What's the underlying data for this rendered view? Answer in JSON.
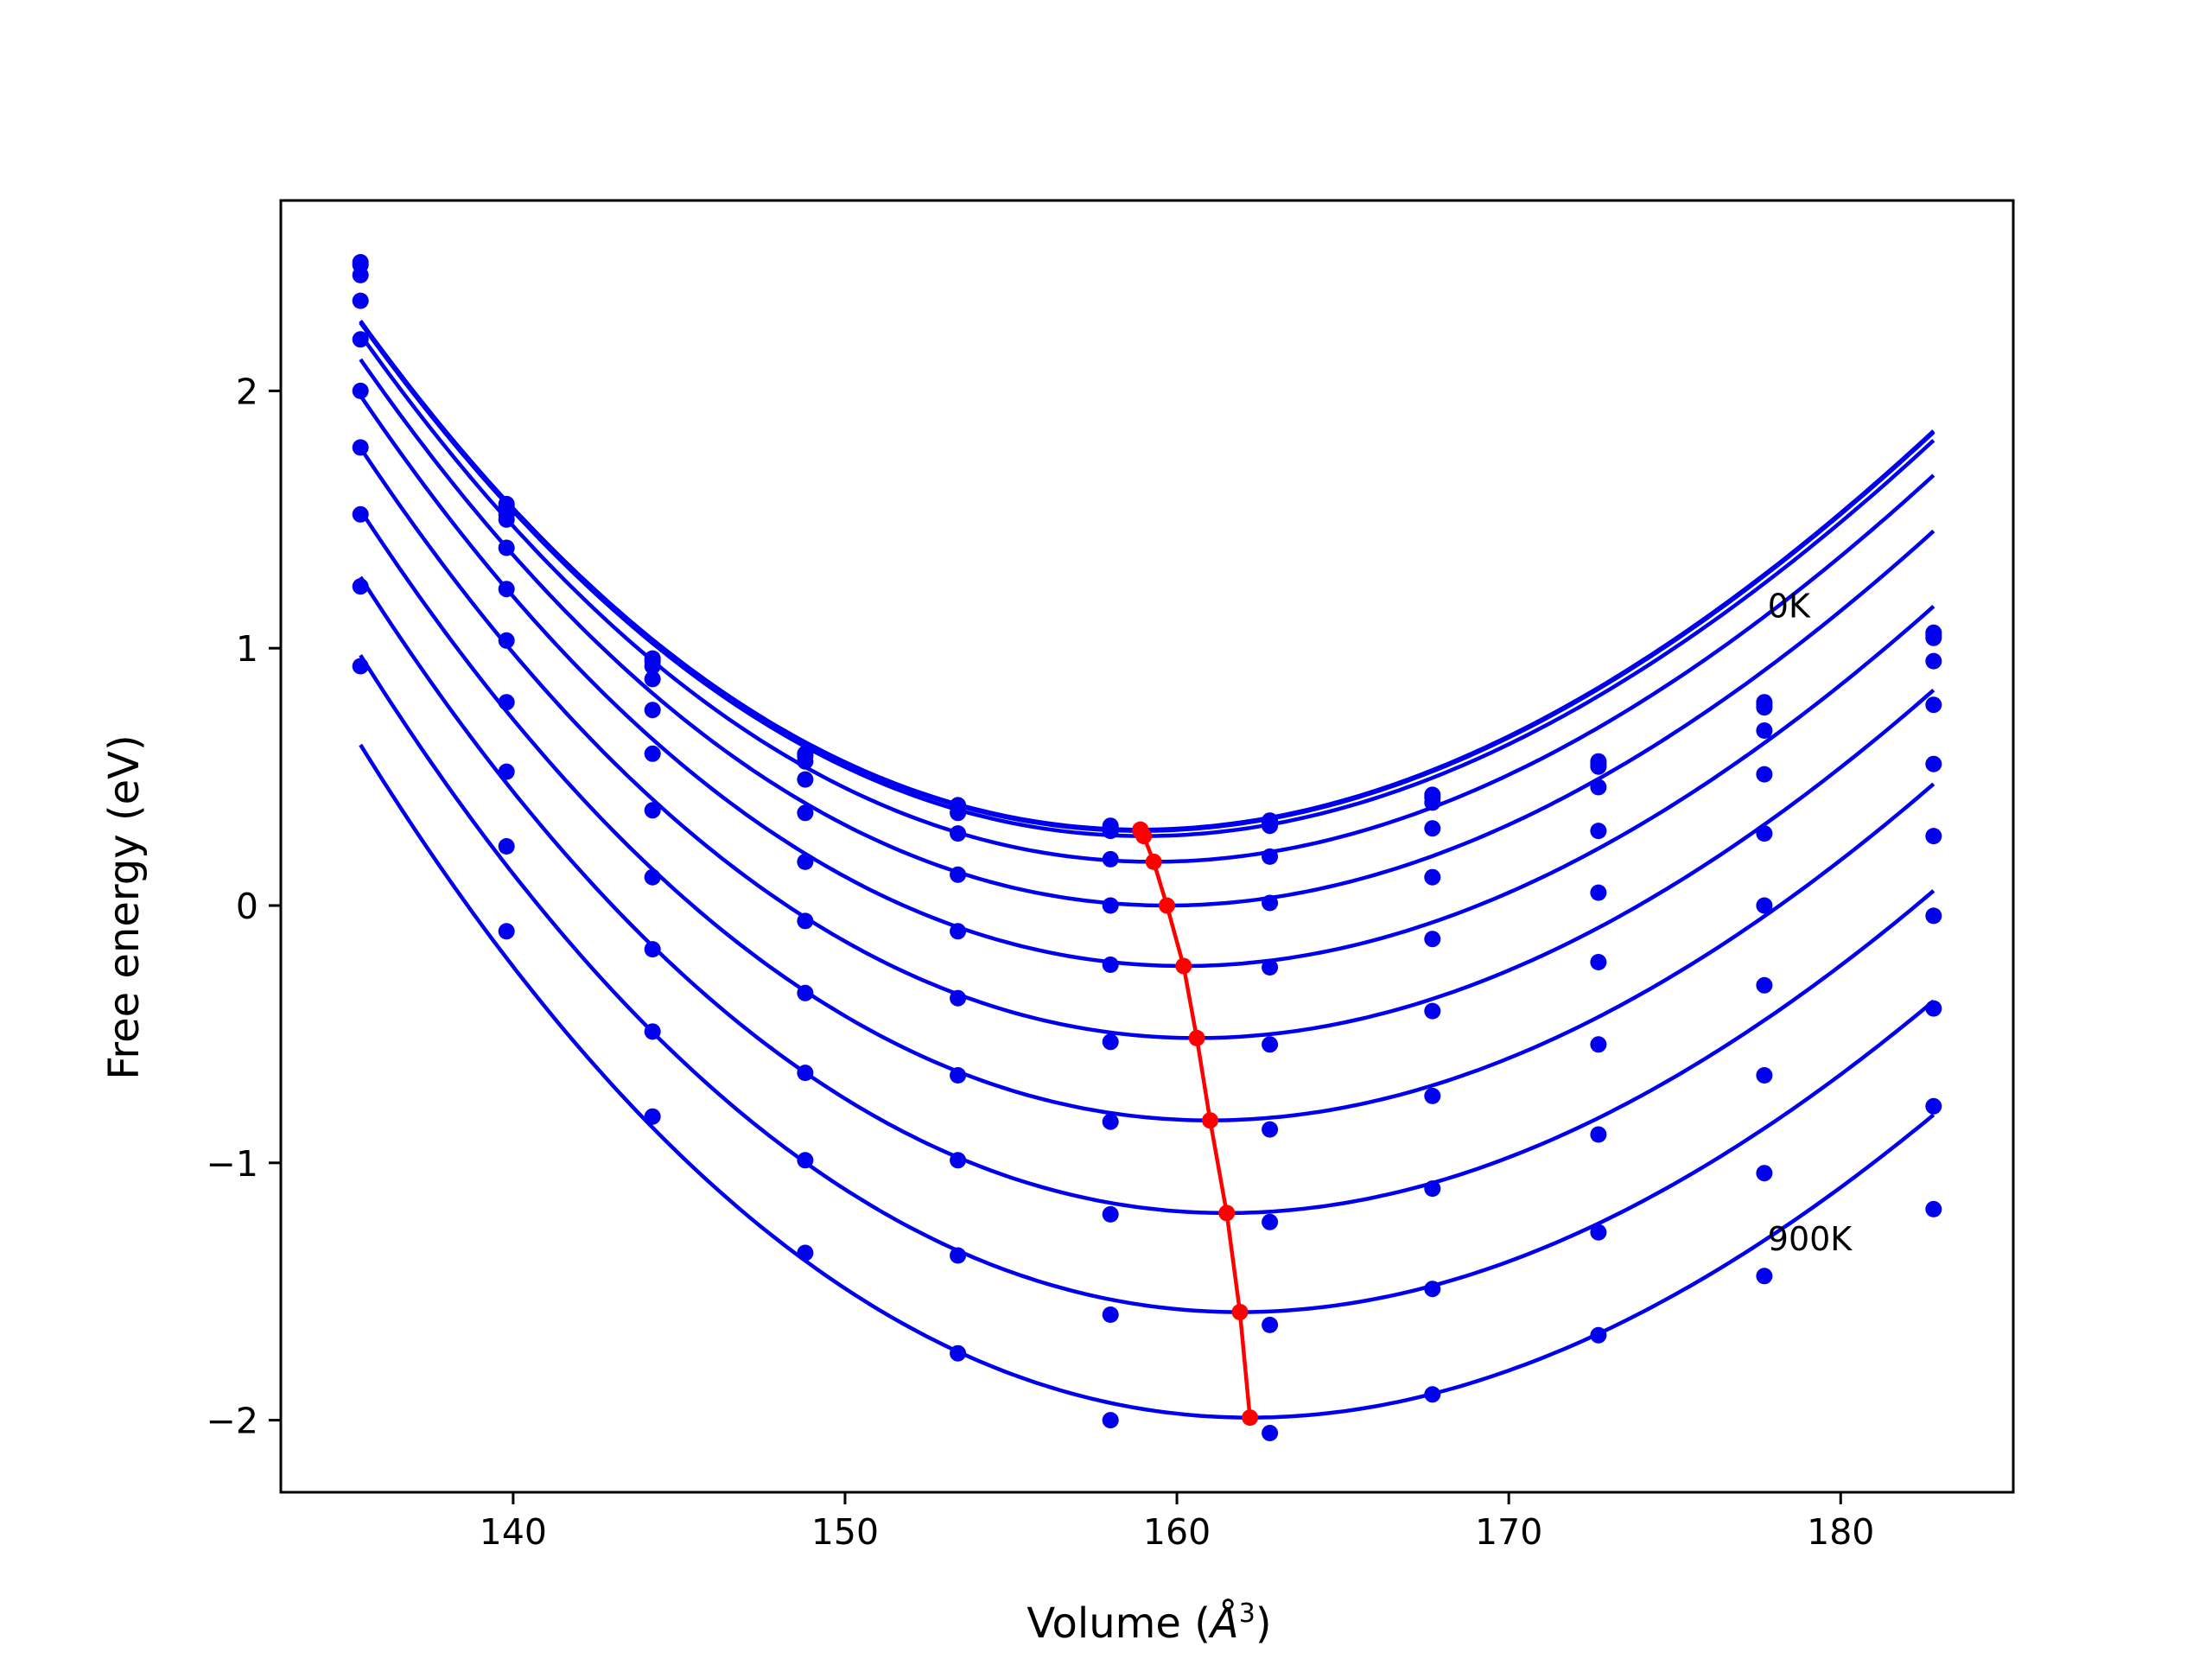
{
  "chart_data": {
    "type": "line",
    "xlabel": "Volume (",
    "xlabel_math": "Å",
    "xlabel_sup": "3",
    "xlabel_close": ")",
    "ylabel": "Free energy (eV)",
    "xlim": [
      133.0,
      185.2
    ],
    "ylim": [
      -2.28,
      2.74
    ],
    "xticks": [
      140,
      150,
      160,
      170,
      180
    ],
    "yticks": [
      -2,
      -1,
      0,
      1,
      2
    ],
    "xtick_labels": [
      "140",
      "150",
      "160",
      "170",
      "180"
    ],
    "ytick_labels": [
      "−2",
      "−1",
      "0",
      "1",
      "2"
    ],
    "grid": false,
    "legend": "none",
    "annotations": [
      {
        "text": "0K",
        "x": 177.8,
        "y": 1.12
      },
      {
        "text": "900K",
        "x": 177.8,
        "y": -1.34
      }
    ],
    "colors": {
      "curves": "#0000ee",
      "minimum_line": "#ff0000"
    },
    "volumes": [
      135.4,
      139.8,
      144.2,
      148.8,
      153.4,
      158.0,
      162.8,
      167.7,
      172.7,
      177.7,
      182.8
    ],
    "curves": [
      {
        "v_min": 158.9,
        "f_min": 0.295,
        "a": 0.00315,
        "b": -1.83e-05,
        "points": [
          2.5,
          1.56,
          0.96,
          0.59,
          0.39,
          0.31,
          0.33,
          0.43,
          0.56,
          0.79,
          1.06
        ]
      },
      {
        "v_min": 158.9,
        "f_min": 0.29,
        "a": 0.00315,
        "b": -1.83e-05,
        "points": [
          2.49,
          1.55,
          0.95,
          0.58,
          0.38,
          0.3,
          0.32,
          0.42,
          0.55,
          0.78,
          1.05
        ]
      },
      {
        "v_min": 159.0,
        "f_min": 0.27,
        "a": 0.00315,
        "b": -1.83e-05,
        "points": [
          2.45,
          1.52,
          0.93,
          0.56,
          0.36,
          0.29,
          0.31,
          0.4,
          0.54,
          0.77,
          1.04
        ]
      },
      {
        "v_min": 159.3,
        "f_min": 0.17,
        "a": 0.00315,
        "b": -1.83e-05,
        "points": [
          2.35,
          1.5,
          0.88,
          0.49,
          0.28,
          0.18,
          0.19,
          0.3,
          0.46,
          0.68,
          0.95
        ]
      },
      {
        "v_min": 159.7,
        "f_min": 0.0,
        "a": 0.00315,
        "b": -1.83e-05,
        "points": [
          2.2,
          1.39,
          0.76,
          0.36,
          0.12,
          0.0,
          0.01,
          0.11,
          0.29,
          0.51,
          0.78
        ]
      },
      {
        "v_min": 160.2,
        "f_min": -0.235,
        "a": 0.00315,
        "b": -1.83e-05,
        "points": [
          2.0,
          1.23,
          0.59,
          0.17,
          -0.1,
          -0.23,
          -0.24,
          -0.13,
          0.05,
          0.28,
          0.55
        ]
      },
      {
        "v_min": 160.6,
        "f_min": -0.515,
        "a": 0.00315,
        "b": -1.83e-05,
        "points": [
          1.78,
          1.03,
          0.37,
          -0.06,
          -0.36,
          -0.53,
          -0.54,
          -0.41,
          -0.22,
          0.0,
          0.27
        ]
      },
      {
        "v_min": 161.0,
        "f_min": -0.835,
        "a": 0.00315,
        "b": -1.83e-05,
        "points": [
          1.52,
          0.79,
          0.11,
          -0.34,
          -0.66,
          -0.84,
          -0.87,
          -0.74,
          -0.54,
          -0.31,
          -0.04
        ]
      },
      {
        "v_min": 161.5,
        "f_min": -1.195,
        "a": 0.00315,
        "b": -1.83e-05,
        "points": [
          1.24,
          0.52,
          -0.17,
          -0.65,
          -0.99,
          -1.2,
          -1.23,
          -1.1,
          -0.89,
          -0.66,
          -0.4
        ]
      },
      {
        "v_min": 161.9,
        "f_min": -1.58,
        "a": 0.00315,
        "b": -1.83e-05,
        "points": [
          0.93,
          0.23,
          -0.49,
          -0.99,
          -1.36,
          -1.59,
          -1.63,
          -1.49,
          -1.27,
          -1.04,
          -0.78
        ]
      },
      {
        "v_min": 162.2,
        "f_min": -1.99,
        "a": 0.00315,
        "b": -1.83e-05,
        "points": [
          null,
          -0.1,
          -0.82,
          -1.35,
          -1.74,
          -2.0,
          -2.05,
          -1.9,
          -1.67,
          -1.44,
          -1.18
        ]
      }
    ]
  }
}
